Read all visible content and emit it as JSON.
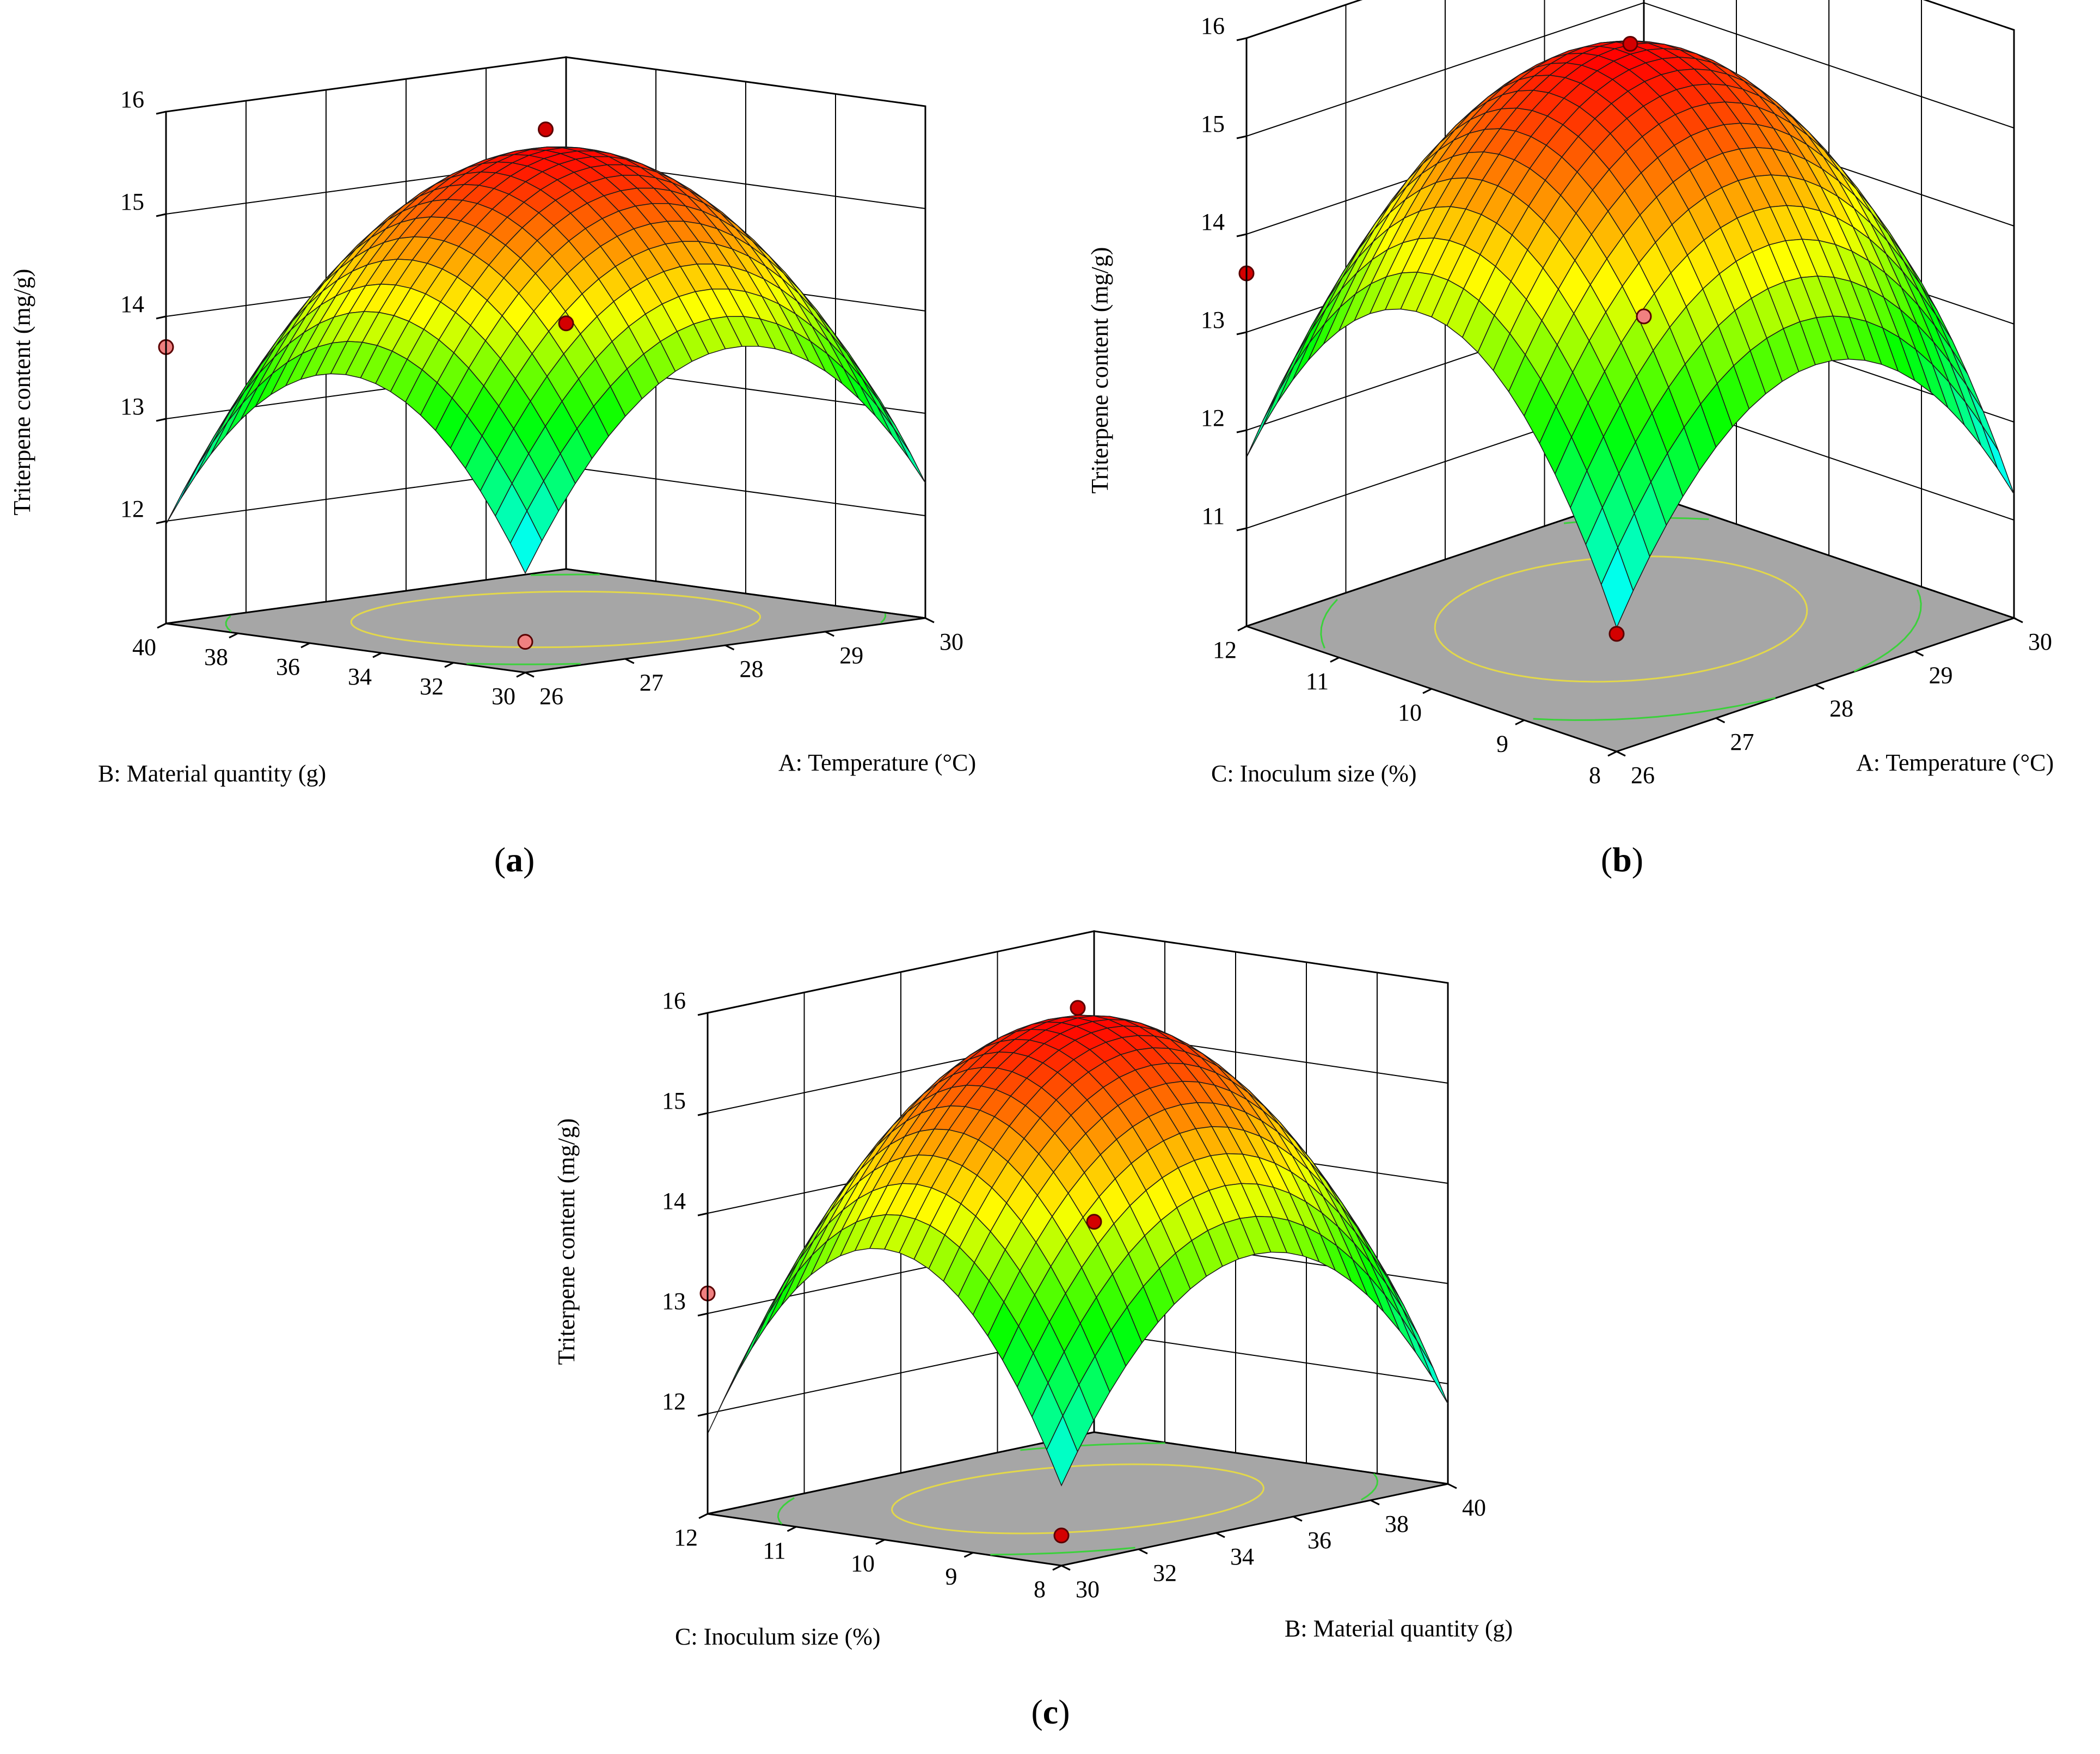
{
  "figure": {
    "panels": [
      {
        "id": "a",
        "label_open": "(",
        "label_letter": "a",
        "label_close": ")"
      },
      {
        "id": "b",
        "label_open": "(",
        "label_letter": "b",
        "label_close": ")"
      },
      {
        "id": "c",
        "label_open": "(",
        "label_letter": "c",
        "label_close": ")"
      }
    ]
  },
  "colors": {
    "floor": "#a6a6a6",
    "wall_grid": "#000000",
    "contour_inner": "#e3d84a",
    "contour_outer": "#3bd13b",
    "contour_cyan": "#35d6d6",
    "surface_low": "#00ffff",
    "surface_mid": "#00ff00",
    "surface_yellow": "#ffff00",
    "surface_high": "#ff0000",
    "design_point_high": "#d40000",
    "design_point_low": "#f08080"
  },
  "chart_data": [
    {
      "type": "surface3d",
      "panel": "a",
      "zlabel": "Triterpene content (mg/g)",
      "xlabel": "A: Temperature (°C)",
      "ylabel": "B: Material quantity (g)",
      "xlim": [
        26,
        30
      ],
      "ylim": [
        30,
        40
      ],
      "zlim": [
        11,
        16
      ],
      "xticks": [
        "26",
        "27",
        "28",
        "29",
        "30"
      ],
      "yticks": [
        "30",
        "32",
        "34",
        "36",
        "38",
        "40"
      ],
      "zticks": [
        "12",
        "13",
        "14",
        "15",
        "16"
      ],
      "model": {
        "center_z": 15.6,
        "x0": 28.1,
        "y0": 35.0,
        "kx": 1.75,
        "ky": 1.7
      },
      "design_points": [
        {
          "x": 28,
          "y": 35,
          "z": 15.8,
          "level": "high"
        },
        {
          "x": 26,
          "y": 40,
          "z": 13.7,
          "level": "low"
        },
        {
          "x": 30,
          "y": 40,
          "z": 13.4,
          "level": "high"
        },
        {
          "x": 26,
          "y": 30,
          "z": 11.3,
          "level": "low"
        }
      ]
    },
    {
      "type": "surface3d",
      "panel": "b",
      "zlabel": "Triterpene content (mg/g)",
      "xlabel": "A: Temperature (°C)",
      "ylabel": "C: Inoculum size (%)",
      "xlim": [
        26,
        30
      ],
      "ylim": [
        8,
        12
      ],
      "zlim": [
        10,
        16
      ],
      "xticks": [
        "26",
        "27",
        "28",
        "29",
        "30"
      ],
      "yticks": [
        "8",
        "9",
        "10",
        "11",
        "12"
      ],
      "zticks": [
        "11",
        "12",
        "13",
        "14",
        "15",
        "16"
      ],
      "model": {
        "center_z": 15.8,
        "x0": 28.0,
        "y0": 10.1,
        "kx": 2.0,
        "ky": 2.3
      },
      "design_points": [
        {
          "x": 28,
          "y": 10,
          "z": 15.9,
          "level": "high"
        },
        {
          "x": 26,
          "y": 12,
          "z": 13.6,
          "level": "high"
        },
        {
          "x": 30,
          "y": 12,
          "z": 11.8,
          "level": "low"
        },
        {
          "x": 26,
          "y": 8,
          "z": 11.2,
          "level": "high"
        }
      ]
    },
    {
      "type": "surface3d",
      "panel": "c",
      "zlabel": "Triterpene content (mg/g)",
      "xlabel": "B: Material quantity (g)",
      "ylabel": "C: Inoculum size (%)",
      "xlim": [
        30,
        40
      ],
      "ylim": [
        8,
        12
      ],
      "zlim": [
        11,
        16
      ],
      "xticks": [
        "30",
        "32",
        "34",
        "36",
        "38",
        "40"
      ],
      "yticks": [
        "8",
        "9",
        "10",
        "11",
        "12"
      ],
      "zticks": [
        "12",
        "13",
        "14",
        "15",
        "16"
      ],
      "model": {
        "center_z": 15.8,
        "x0": 35.0,
        "y0": 10.0,
        "kx": 1.9,
        "ky": 2.1
      },
      "design_points": [
        {
          "x": 35,
          "y": 10,
          "z": 15.9,
          "level": "high"
        },
        {
          "x": 30,
          "y": 12,
          "z": 13.2,
          "level": "low"
        },
        {
          "x": 40,
          "y": 12,
          "z": 13.1,
          "level": "high"
        },
        {
          "x": 30,
          "y": 8,
          "z": 11.3,
          "level": "high"
        }
      ]
    }
  ]
}
